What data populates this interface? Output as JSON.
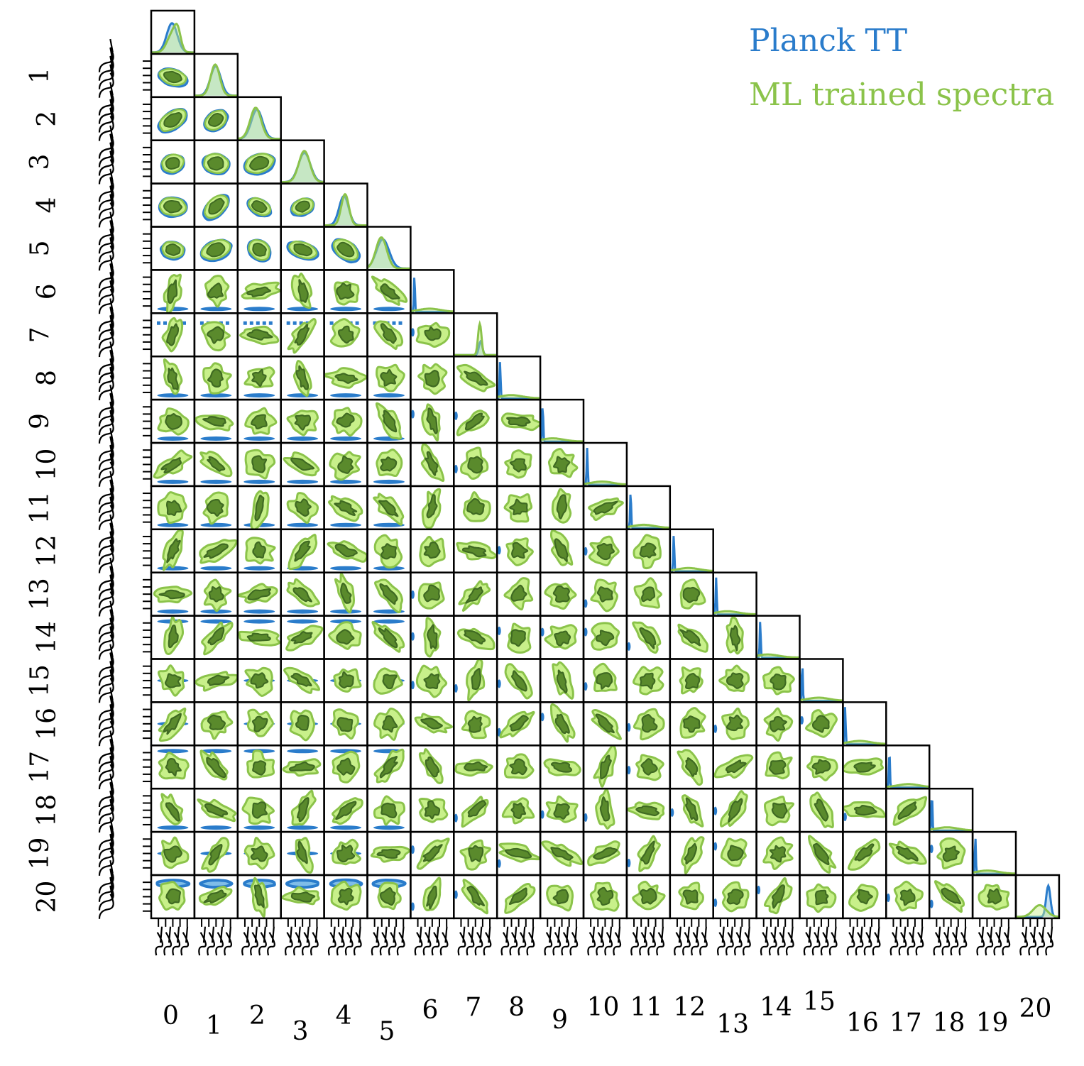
{
  "chart_data": {
    "type": "corner",
    "parameters": [
      "0",
      "1",
      "2",
      "3",
      "4",
      "5",
      "6",
      "7",
      "8",
      "9",
      "10",
      "11",
      "12",
      "13",
      "14",
      "15",
      "16",
      "17",
      "18",
      "19",
      "20"
    ],
    "y_axis_labels": [
      "1",
      "2",
      "3",
      "4",
      "5",
      "6",
      "7",
      "8",
      "9",
      "10",
      "11",
      "12",
      "13",
      "14",
      "15",
      "16",
      "17",
      "18",
      "19",
      "20"
    ],
    "x_axis_labels": [
      "0",
      "1",
      "2",
      "3",
      "4",
      "5",
      "6",
      "7",
      "8",
      "9",
      "10",
      "11",
      "12",
      "13",
      "14",
      "15",
      "16",
      "17",
      "18",
      "19",
      "20"
    ],
    "legend_position": "top-right",
    "series": [
      {
        "name": "Planck TT",
        "color": "#2a7ccb",
        "fill_outer": "#7fbde8",
        "fill_inner": "#2a7ccb"
      },
      {
        "name": "ML trained spectra",
        "color": "#8bc34a",
        "fill_outer": "#c8f08a",
        "fill_inner": "#5a8a2c",
        "edge": "#3f6a22"
      }
    ],
    "grid": false
  }
}
